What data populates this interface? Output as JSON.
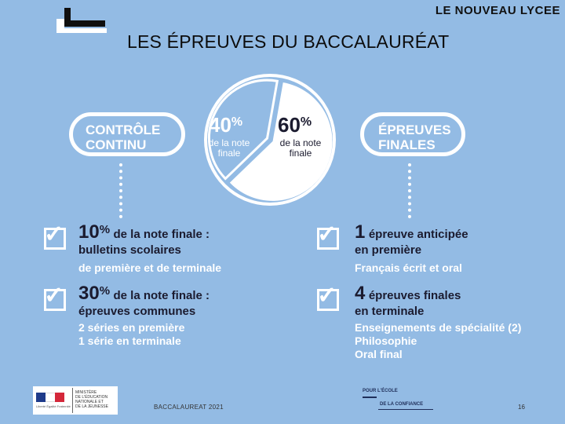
{
  "header": {
    "label": "LE NOUVEAU LYCEE"
  },
  "title": "LES ÉPREUVES DU BACCALAURÉAT",
  "pie": {
    "left": {
      "pct": "40",
      "sign": "%",
      "sub": "de la note finale",
      "value": 40
    },
    "right": {
      "pct": "60",
      "sign": "%",
      "sub": "de la note finale",
      "value": 60
    }
  },
  "pills": {
    "left": [
      "CONTRÔLE",
      "CONTINU"
    ],
    "right": [
      "ÉPREUVES",
      "FINALES"
    ]
  },
  "left_blocks": [
    {
      "num": "10",
      "sign": "%",
      "lead": "de la note finale :",
      "sub": [
        "bulletins scolaires"
      ],
      "notes": [
        "de première et de terminale"
      ]
    },
    {
      "num": "30",
      "sign": "%",
      "lead": "de la note finale :",
      "sub": [
        "épreuves communes"
      ],
      "notes": [
        "2 séries en première",
        "1 série en terminale"
      ]
    }
  ],
  "right_blocks": [
    {
      "num": "1",
      "lead": "épreuve anticipée",
      "sub": [
        "en première"
      ],
      "notes": [
        "Français écrit et oral"
      ]
    },
    {
      "num": "4",
      "lead": "épreuves finales",
      "sub": [
        "en terminale"
      ],
      "notes": [
        "Enseignements de spécialité (2)",
        "Philosophie",
        "Oral final"
      ]
    }
  ],
  "footer": {
    "ministry": [
      "MINISTÈRE",
      "DE L'ÉDUCATION",
      "NATIONALE ET",
      "DE LA JEUNESSE"
    ],
    "flag_caption": "Liberté Égalité Fraternité",
    "center": "BACCALAUREAT 2021",
    "ecole": [
      "POUR L'ÉCOLE",
      "DE LA CONFIANCE"
    ],
    "page": "16"
  },
  "colors": {
    "background": "#93bbe4",
    "dark": "#1b1b2f",
    "white": "#ffffff"
  }
}
